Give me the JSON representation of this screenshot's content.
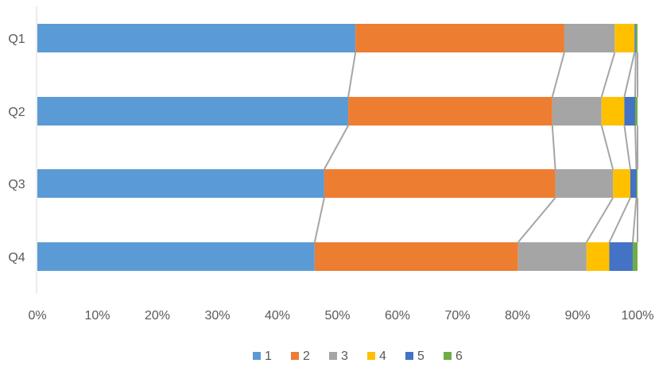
{
  "chart_data": {
    "type": "bar",
    "orientation": "horizontal",
    "stacked": "percent",
    "categories": [
      "Q1",
      "Q2",
      "Q3",
      "Q4"
    ],
    "series": [
      {
        "name": "1",
        "color": "#5B9BD5",
        "values": [
          53.0,
          51.8,
          47.8,
          46.2
        ]
      },
      {
        "name": "2",
        "color": "#ED7D31",
        "values": [
          34.8,
          34.0,
          38.5,
          33.9
        ]
      },
      {
        "name": "3",
        "color": "#A5A5A5",
        "values": [
          8.4,
          8.2,
          9.6,
          11.4
        ]
      },
      {
        "name": "4",
        "color": "#FFC000",
        "values": [
          3.3,
          3.8,
          2.9,
          3.8
        ]
      },
      {
        "name": "5",
        "color": "#4472C4",
        "values": [
          0.2,
          1.8,
          1.0,
          3.9
        ]
      },
      {
        "name": "6",
        "color": "#70AD47",
        "values": [
          0.3,
          0.4,
          0.2,
          0.8
        ]
      }
    ],
    "x_ticks": [
      "0%",
      "10%",
      "20%",
      "30%",
      "40%",
      "50%",
      "60%",
      "70%",
      "80%",
      "90%",
      "100%"
    ],
    "xlim": [
      0,
      100
    ],
    "series_lines": true,
    "legend": "bottom-center",
    "grid": false,
    "title": "",
    "xlabel": "",
    "ylabel": ""
  }
}
